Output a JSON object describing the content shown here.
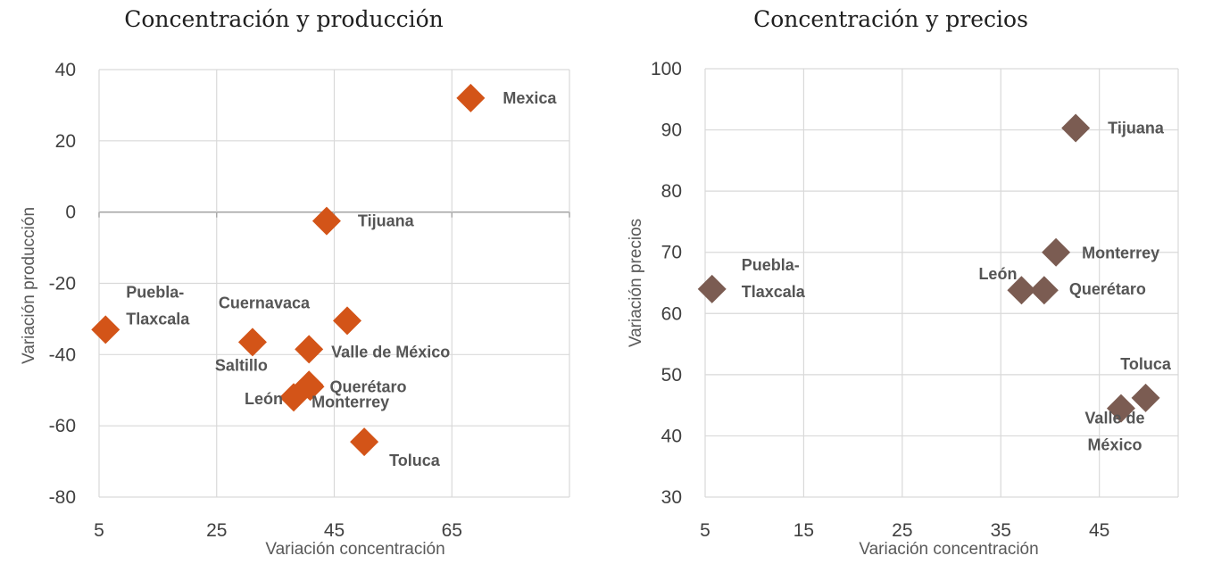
{
  "chart_data": [
    {
      "type": "scatter",
      "title": "Concentración y producción",
      "xlabel": "Variación concentración",
      "ylabel": "Variación producción",
      "xlim": [
        5,
        85
      ],
      "ylim": [
        -80,
        40
      ],
      "xticks": [
        5,
        25,
        45,
        65
      ],
      "yticks": [
        40,
        20,
        0,
        -20,
        -40,
        -60,
        -80
      ],
      "xtick_labels": [
        "5",
        "25",
        "45",
        "65"
      ],
      "ytick_labels": [
        "40",
        "20",
        "0",
        "-20",
        "-40",
        "-60",
        "-80"
      ],
      "color": "#d35418",
      "points": [
        {
          "name": "Mexica",
          "x": 68.2,
          "y": 32
        },
        {
          "name": "Tijuana",
          "x": 43.7,
          "y": -2.5
        },
        {
          "name": "Puebla-\nTlaxcala",
          "x": 6.1,
          "y": -33
        },
        {
          "name": "Cuernavaca",
          "x": 47.2,
          "y": -30.5
        },
        {
          "name": "Saltillo",
          "x": 31.1,
          "y": -36.5
        },
        {
          "name": "Valle de México",
          "x": 40.7,
          "y": -38.5
        },
        {
          "name": "Querétaro",
          "x": 40.9,
          "y": -49
        },
        {
          "name": "León",
          "x": 38.1,
          "y": -52
        },
        {
          "name": "Monterrey",
          "x": 40.7,
          "y": -48.5
        },
        {
          "name": "Toluca",
          "x": 50.1,
          "y": -64.5
        }
      ]
    },
    {
      "type": "scatter",
      "title": "Concentración y precios",
      "xlabel": "Variación concentración",
      "ylabel": "Variación precios",
      "xlim": [
        5,
        53
      ],
      "ylim": [
        30,
        100
      ],
      "xticks": [
        5,
        15,
        25,
        35,
        45
      ],
      "yticks": [
        100,
        90,
        80,
        70,
        60,
        50,
        40,
        30
      ],
      "xtick_labels": [
        "5",
        "15",
        "25",
        "35",
        "45"
      ],
      "ytick_labels": [
        "100",
        "90",
        "80",
        "70",
        "60",
        "50",
        "40",
        "30"
      ],
      "color": "#7b5c52",
      "points": [
        {
          "name": "Tijuana",
          "x": 42.6,
          "y": 90.3
        },
        {
          "name": "Monterrey",
          "x": 40.6,
          "y": 70
        },
        {
          "name": "León",
          "x": 37.1,
          "y": 63.8
        },
        {
          "name": "Querétaro",
          "x": 39.4,
          "y": 63.8
        },
        {
          "name": "Puebla-\nTlaxcala",
          "x": 5.7,
          "y": 64
        },
        {
          "name": "Toluca",
          "x": 49.7,
          "y": 46.2
        },
        {
          "name": "Valle de\nMéxico",
          "x": 47.2,
          "y": 44.5
        }
      ]
    }
  ]
}
